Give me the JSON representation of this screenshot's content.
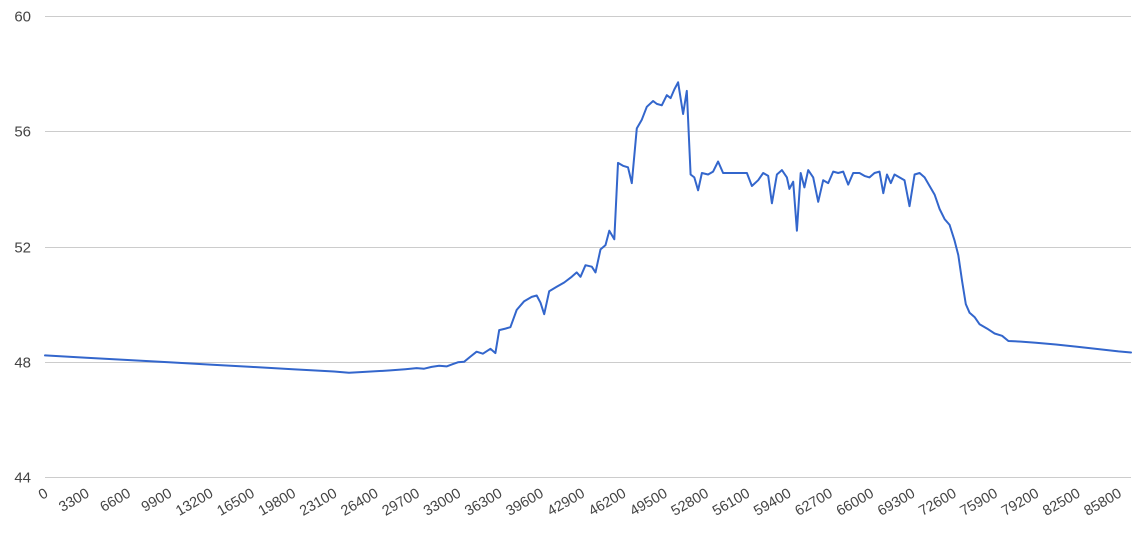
{
  "chart_data": {
    "type": "line",
    "title": "",
    "xlabel": "",
    "ylabel": "",
    "xlim": [
      0,
      86800
    ],
    "ylim": [
      44,
      60
    ],
    "y_ticks": [
      "44",
      "48",
      "52",
      "56",
      "60"
    ],
    "x_ticks": [
      "0",
      "3300",
      "6600",
      "9900",
      "13200",
      "16500",
      "19800",
      "23100",
      "26400",
      "29700",
      "33000",
      "36300",
      "39600",
      "42900",
      "46200",
      "49500",
      "52800",
      "56100",
      "59400",
      "62700",
      "66000",
      "69300",
      "72600",
      "75900",
      "79200",
      "82500",
      "85800"
    ],
    "grid": true,
    "legend": "none",
    "line_color": "#3366cc",
    "grid_color": "#cccccc",
    "series": [
      {
        "values": [
          [
            0,
            48.22
          ],
          [
            3300,
            48.14
          ],
          [
            6600,
            48.06
          ],
          [
            9900,
            47.98
          ],
          [
            13200,
            47.9
          ],
          [
            16500,
            47.82
          ],
          [
            19800,
            47.74
          ],
          [
            23100,
            47.66
          ],
          [
            24300,
            47.62
          ],
          [
            25200,
            47.64
          ],
          [
            26400,
            47.67
          ],
          [
            27600,
            47.7
          ],
          [
            28800,
            47.74
          ],
          [
            29700,
            47.78
          ],
          [
            30300,
            47.76
          ],
          [
            30900,
            47.82
          ],
          [
            31500,
            47.86
          ],
          [
            32100,
            47.84
          ],
          [
            32600,
            47.92
          ],
          [
            33000,
            47.98
          ],
          [
            33500,
            48.0
          ],
          [
            34000,
            48.18
          ],
          [
            34500,
            48.35
          ],
          [
            35000,
            48.28
          ],
          [
            35600,
            48.45
          ],
          [
            36000,
            48.3
          ],
          [
            36300,
            49.1
          ],
          [
            36800,
            49.15
          ],
          [
            37200,
            49.2
          ],
          [
            37700,
            49.8
          ],
          [
            38300,
            50.1
          ],
          [
            38900,
            50.25
          ],
          [
            39300,
            50.3
          ],
          [
            39600,
            50.05
          ],
          [
            39900,
            49.65
          ],
          [
            40300,
            50.45
          ],
          [
            40900,
            50.6
          ],
          [
            41500,
            50.75
          ],
          [
            42100,
            50.95
          ],
          [
            42500,
            51.1
          ],
          [
            42800,
            50.95
          ],
          [
            43200,
            51.35
          ],
          [
            43700,
            51.3
          ],
          [
            44000,
            51.1
          ],
          [
            44400,
            51.9
          ],
          [
            44800,
            52.05
          ],
          [
            45100,
            52.55
          ],
          [
            45500,
            52.25
          ],
          [
            45800,
            54.9
          ],
          [
            46200,
            54.8
          ],
          [
            46600,
            54.75
          ],
          [
            46900,
            54.2
          ],
          [
            47300,
            56.1
          ],
          [
            47700,
            56.4
          ],
          [
            48100,
            56.85
          ],
          [
            48600,
            57.05
          ],
          [
            48900,
            56.95
          ],
          [
            49300,
            56.9
          ],
          [
            49700,
            57.25
          ],
          [
            50000,
            57.15
          ],
          [
            50300,
            57.45
          ],
          [
            50600,
            57.7
          ],
          [
            51000,
            56.6
          ],
          [
            51300,
            57.4
          ],
          [
            51600,
            54.5
          ],
          [
            51900,
            54.4
          ],
          [
            52200,
            53.95
          ],
          [
            52500,
            54.55
          ],
          [
            53000,
            54.5
          ],
          [
            53400,
            54.6
          ],
          [
            53800,
            54.95
          ],
          [
            54200,
            54.55
          ],
          [
            54700,
            54.55
          ],
          [
            55200,
            54.55
          ],
          [
            55700,
            54.55
          ],
          [
            56100,
            54.55
          ],
          [
            56500,
            54.1
          ],
          [
            57000,
            54.3
          ],
          [
            57400,
            54.55
          ],
          [
            57800,
            54.45
          ],
          [
            58100,
            53.5
          ],
          [
            58500,
            54.5
          ],
          [
            58900,
            54.65
          ],
          [
            59300,
            54.4
          ],
          [
            59500,
            54.0
          ],
          [
            59800,
            54.25
          ],
          [
            60100,
            52.55
          ],
          [
            60400,
            54.55
          ],
          [
            60700,
            54.05
          ],
          [
            61000,
            54.65
          ],
          [
            61400,
            54.4
          ],
          [
            61800,
            53.55
          ],
          [
            62200,
            54.3
          ],
          [
            62600,
            54.2
          ],
          [
            63000,
            54.6
          ],
          [
            63400,
            54.55
          ],
          [
            63800,
            54.6
          ],
          [
            64200,
            54.15
          ],
          [
            64600,
            54.55
          ],
          [
            65100,
            54.55
          ],
          [
            65500,
            54.45
          ],
          [
            65900,
            54.4
          ],
          [
            66300,
            54.55
          ],
          [
            66700,
            54.6
          ],
          [
            67000,
            53.85
          ],
          [
            67300,
            54.5
          ],
          [
            67600,
            54.2
          ],
          [
            67900,
            54.5
          ],
          [
            68300,
            54.4
          ],
          [
            68700,
            54.3
          ],
          [
            69100,
            53.4
          ],
          [
            69500,
            54.5
          ],
          [
            69900,
            54.55
          ],
          [
            70300,
            54.4
          ],
          [
            70700,
            54.1
          ],
          [
            71100,
            53.8
          ],
          [
            71500,
            53.3
          ],
          [
            71900,
            52.95
          ],
          [
            72300,
            52.75
          ],
          [
            72700,
            52.2
          ],
          [
            73000,
            51.7
          ],
          [
            73300,
            50.8
          ],
          [
            73600,
            50.0
          ],
          [
            73900,
            49.7
          ],
          [
            74300,
            49.55
          ],
          [
            74700,
            49.3
          ],
          [
            75300,
            49.15
          ],
          [
            75900,
            48.98
          ],
          [
            76500,
            48.9
          ],
          [
            77000,
            48.72
          ],
          [
            78000,
            48.7
          ],
          [
            79200,
            48.66
          ],
          [
            80800,
            48.6
          ],
          [
            82500,
            48.52
          ],
          [
            84200,
            48.44
          ],
          [
            85800,
            48.36
          ],
          [
            86800,
            48.32
          ]
        ]
      }
    ]
  }
}
